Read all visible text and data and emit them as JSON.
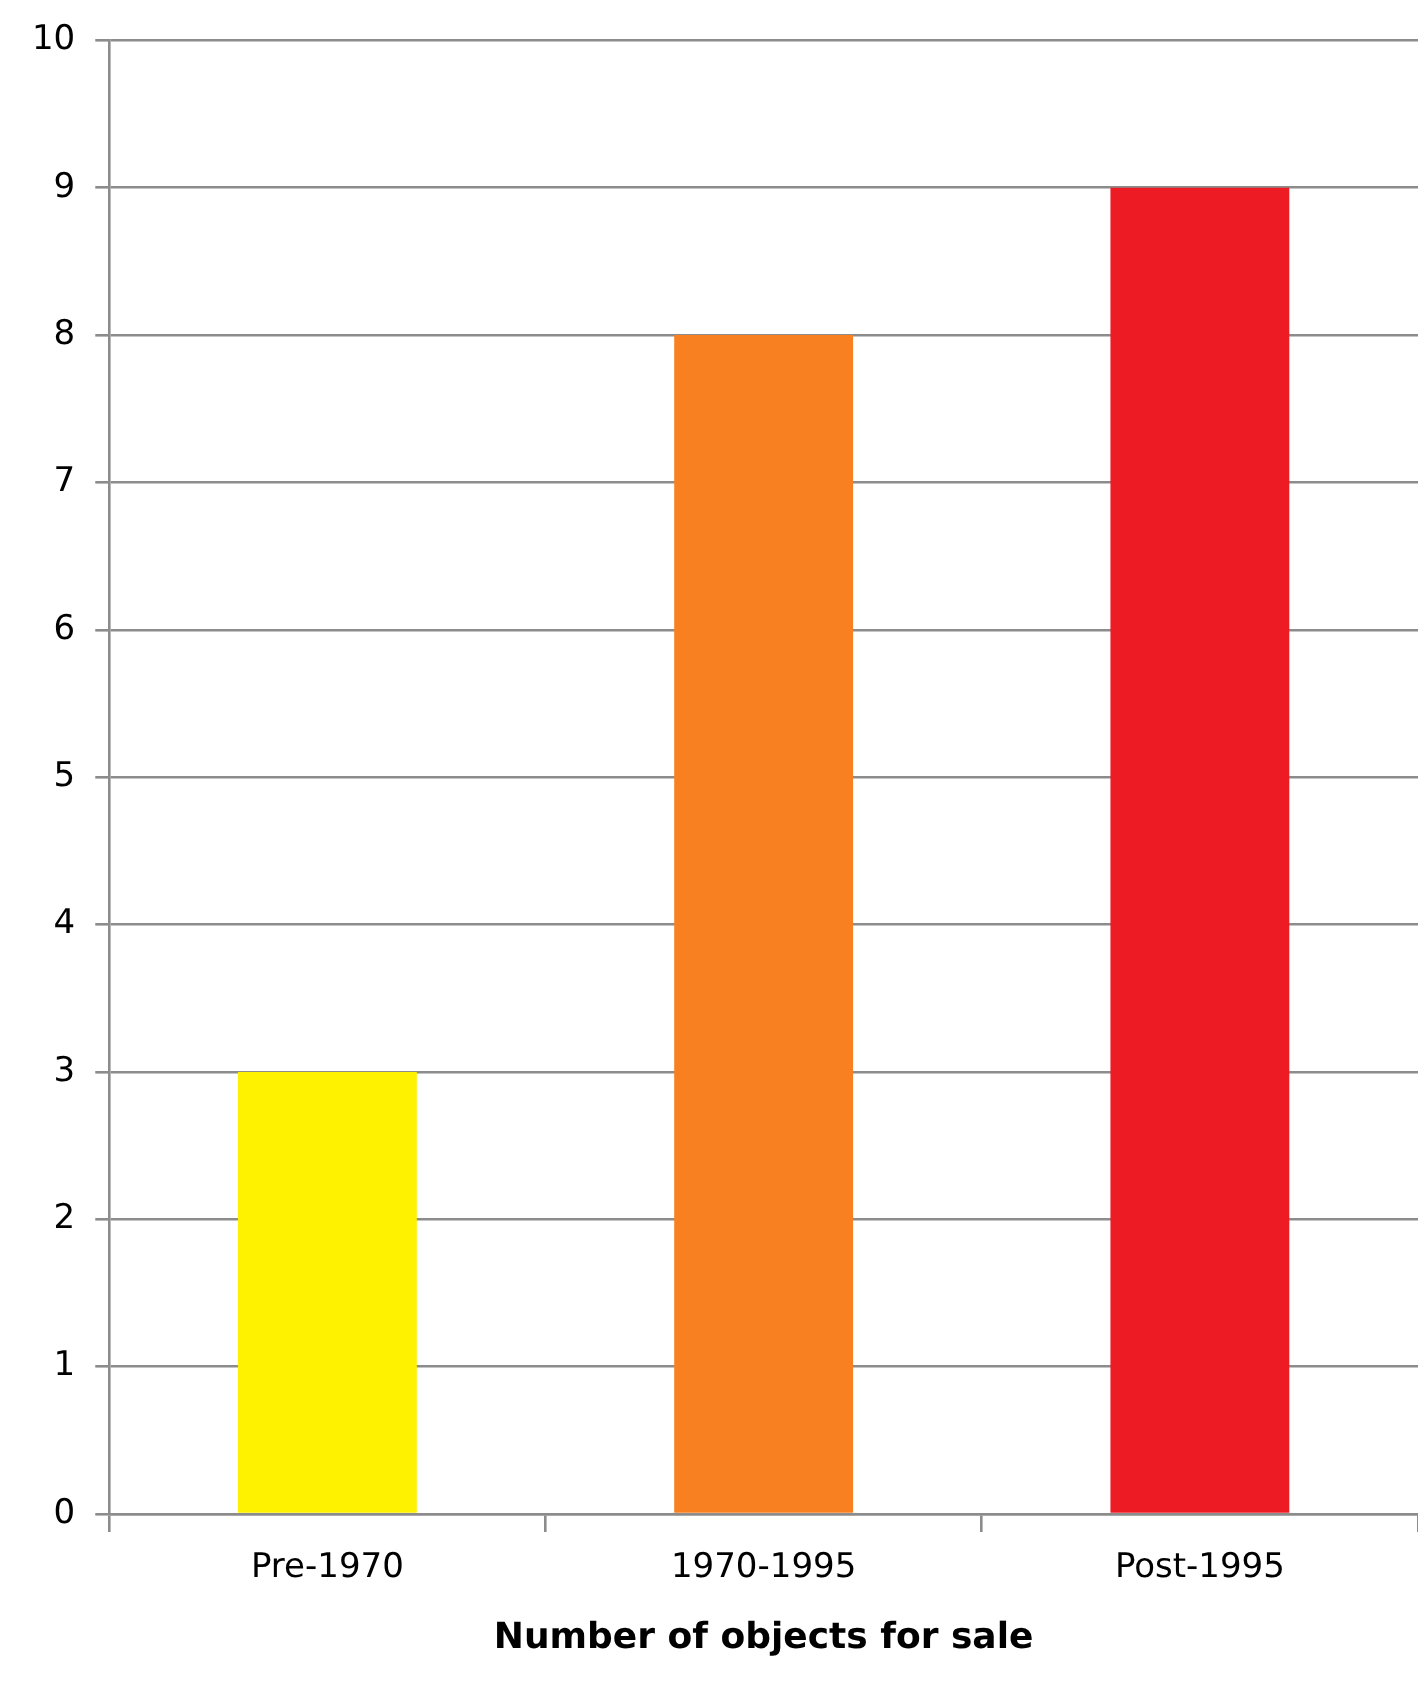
{
  "chart_data": {
    "type": "bar",
    "xlabel": "Number of objects for sale",
    "categories": [
      "Pre-1970",
      "1970-1995",
      "Post-1995"
    ],
    "values": [
      3,
      8,
      9
    ],
    "colors": [
      "#fff200",
      "#f98020",
      "#ed1c24"
    ],
    "ylim": [
      0,
      10
    ],
    "yticks": [
      0,
      1,
      2,
      3,
      4,
      5,
      6,
      7,
      8,
      9,
      10
    ],
    "grid": "y",
    "legend": false
  }
}
